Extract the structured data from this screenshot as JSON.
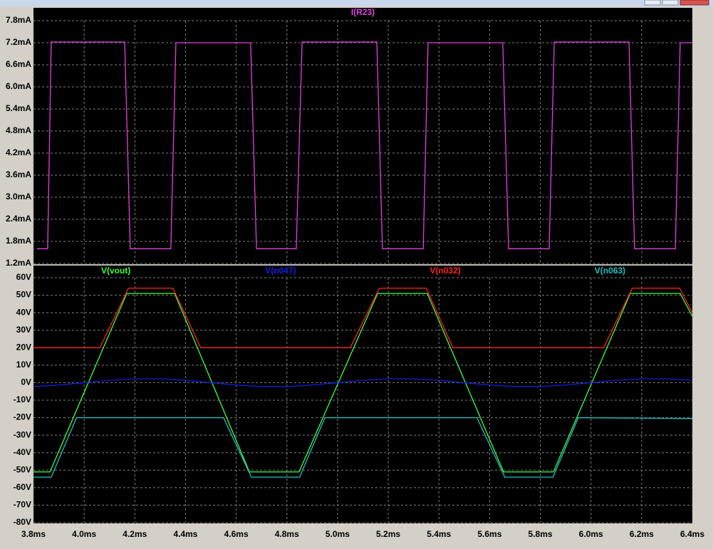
{
  "chart_data": [
    {
      "type": "line",
      "grid": true,
      "xlim": [
        3.8,
        6.4
      ],
      "ylim": [
        1.2,
        7.8
      ],
      "yticks": [
        {
          "value": 1.2,
          "label": "1.2mA"
        },
        {
          "value": 1.8,
          "label": "1.8mA"
        },
        {
          "value": 2.4,
          "label": "2.4mA"
        },
        {
          "value": 3.0,
          "label": "3.0mA"
        },
        {
          "value": 3.6,
          "label": "3.6mA"
        },
        {
          "value": 4.2,
          "label": "4.2mA"
        },
        {
          "value": 4.8,
          "label": "4.8mA"
        },
        {
          "value": 5.4,
          "label": "5.4mA"
        },
        {
          "value": 6.0,
          "label": "6.0mA"
        },
        {
          "value": 6.6,
          "label": "6.6mA"
        },
        {
          "value": 7.2,
          "label": "7.2mA"
        },
        {
          "value": 7.8,
          "label": "7.8mA"
        }
      ],
      "series": [
        {
          "name": "I(R23)",
          "color": "#e040e0",
          "x": [
            3.814,
            3.856,
            3.87,
            4.16,
            4.182,
            4.342,
            4.362,
            4.657,
            4.68,
            4.837,
            4.86,
            5.155,
            5.177,
            5.338,
            5.357,
            5.652,
            5.675,
            5.835,
            5.855,
            6.15,
            6.172,
            6.333,
            6.352,
            6.4
          ],
          "values": [
            1.6,
            1.6,
            7.22,
            7.22,
            1.6,
            1.6,
            7.2,
            7.2,
            1.6,
            1.6,
            7.22,
            7.22,
            1.6,
            1.6,
            7.2,
            7.2,
            1.6,
            1.6,
            7.22,
            7.22,
            1.6,
            1.6,
            7.2,
            7.2
          ]
        }
      ]
    },
    {
      "type": "line",
      "grid": true,
      "xlim": [
        3.8,
        6.4
      ],
      "ylim": [
        -80,
        60
      ],
      "xticks": [
        {
          "value": 3.8,
          "label": "3.8ms"
        },
        {
          "value": 4.0,
          "label": "4.0ms"
        },
        {
          "value": 4.2,
          "label": "4.2ms"
        },
        {
          "value": 4.4,
          "label": "4.4ms"
        },
        {
          "value": 4.6,
          "label": "4.6ms"
        },
        {
          "value": 4.8,
          "label": "4.8ms"
        },
        {
          "value": 5.0,
          "label": "5.0ms"
        },
        {
          "value": 5.2,
          "label": "5.2ms"
        },
        {
          "value": 5.4,
          "label": "5.4ms"
        },
        {
          "value": 5.6,
          "label": "5.6ms"
        },
        {
          "value": 5.8,
          "label": "5.8ms"
        },
        {
          "value": 6.0,
          "label": "6.0ms"
        },
        {
          "value": 6.2,
          "label": "6.2ms"
        },
        {
          "value": 6.4,
          "label": "6.4ms"
        }
      ],
      "yticks": [
        {
          "value": -80,
          "label": "-80V"
        },
        {
          "value": -70,
          "label": "-70V"
        },
        {
          "value": -60,
          "label": "-60V"
        },
        {
          "value": -50,
          "label": "-50V"
        },
        {
          "value": -40,
          "label": "-40V"
        },
        {
          "value": -30,
          "label": "-30V"
        },
        {
          "value": -20,
          "label": "-20V"
        },
        {
          "value": -10,
          "label": "-10V"
        },
        {
          "value": 0,
          "label": "0V"
        },
        {
          "value": 10,
          "label": "10V"
        },
        {
          "value": 20,
          "label": "20V"
        },
        {
          "value": 30,
          "label": "30V"
        },
        {
          "value": 40,
          "label": "40V"
        },
        {
          "value": 50,
          "label": "50V"
        },
        {
          "value": 60,
          "label": "60V"
        }
      ],
      "series": [
        {
          "name": "V(vout)",
          "color": "#40ff40",
          "x": [
            3.8,
            3.865,
            4.168,
            4.357,
            4.652,
            4.848,
            5.158,
            5.354,
            5.655,
            5.852,
            6.155,
            6.352,
            6.4
          ],
          "values": [
            -51,
            -51,
            51,
            51,
            -51,
            -51,
            51,
            51,
            -51,
            -51,
            51,
            51,
            38
          ]
        },
        {
          "name": "V(n047)",
          "color": "#1020e0",
          "x": [
            3.8,
            3.9,
            4.0,
            4.1,
            4.2,
            4.3,
            4.4,
            4.5,
            4.6,
            4.7,
            4.8,
            4.9,
            5.0,
            5.1,
            5.2,
            5.3,
            5.4,
            5.5,
            5.6,
            5.7,
            5.8,
            5.9,
            6.0,
            6.1,
            6.2,
            6.3,
            6.4
          ],
          "values": [
            -2.2,
            -1.35,
            0,
            1.35,
            2.2,
            2.2,
            1.35,
            0,
            -1.35,
            -2.2,
            -2.2,
            -1.35,
            0,
            1.35,
            2.2,
            2.2,
            1.35,
            0,
            -1.35,
            -2.2,
            -2.2,
            -1.35,
            0,
            1.35,
            2.2,
            2.2,
            1.35
          ]
        },
        {
          "name": "V(n032)",
          "color": "#ff2020",
          "x": [
            3.8,
            4.062,
            4.175,
            4.35,
            4.46,
            5.05,
            5.165,
            5.35,
            5.455,
            6.05,
            6.163,
            6.35,
            6.4
          ],
          "values": [
            20,
            20,
            54,
            54,
            20,
            20,
            54,
            54,
            20,
            20,
            54,
            54,
            40
          ]
        },
        {
          "name": "V(n063)",
          "color": "#20c0c0",
          "x": [
            3.8,
            3.87,
            3.97,
            4.55,
            4.66,
            4.85,
            4.95,
            5.55,
            5.66,
            5.85,
            5.95,
            6.4
          ],
          "values": [
            -54,
            -54,
            -20,
            -20,
            -54,
            -54,
            -20,
            -20,
            -54,
            -54,
            -20,
            -20.5
          ]
        }
      ]
    }
  ]
}
